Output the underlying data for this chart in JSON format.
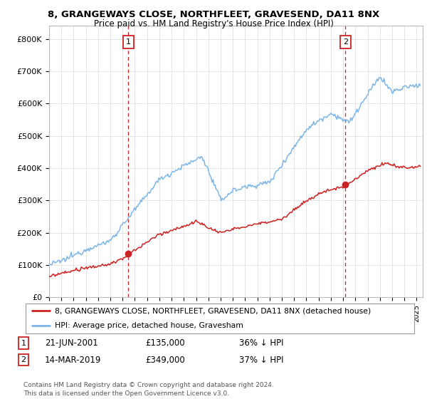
{
  "title": "8, GRANGEWAYS CLOSE, NORTHFLEET, GRAVESEND, DA11 8NX",
  "subtitle": "Price paid vs. HM Land Registry's House Price Index (HPI)",
  "ylabel_ticks": [
    "£0",
    "£100K",
    "£200K",
    "£300K",
    "£400K",
    "£500K",
    "£600K",
    "£700K",
    "£800K"
  ],
  "ytick_values": [
    0,
    100000,
    200000,
    300000,
    400000,
    500000,
    600000,
    700000,
    800000
  ],
  "ylim": [
    0,
    840000
  ],
  "hpi_color": "#7EB6E8",
  "price_color": "#cc2222",
  "marker1_date_x": 2001.47,
  "marker1_price": 135000,
  "marker2_date_x": 2019.19,
  "marker2_price": 349000,
  "legend_label_red": "8, GRANGEWAYS CLOSE, NORTHFLEET, GRAVESEND, DA11 8NX (detached house)",
  "legend_label_blue": "HPI: Average price, detached house, Gravesham",
  "table_row1": [
    "1",
    "21-JUN-2001",
    "£135,000",
    "36% ↓ HPI"
  ],
  "table_row2": [
    "2",
    "14-MAR-2019",
    "£349,000",
    "37% ↓ HPI"
  ],
  "footer": "Contains HM Land Registry data © Crown copyright and database right 2024.\nThis data is licensed under the Open Government Licence v3.0.",
  "background_color": "#ffffff",
  "grid_color": "#e0e0e0",
  "xlim_start": 1995,
  "xlim_end": 2025.5
}
